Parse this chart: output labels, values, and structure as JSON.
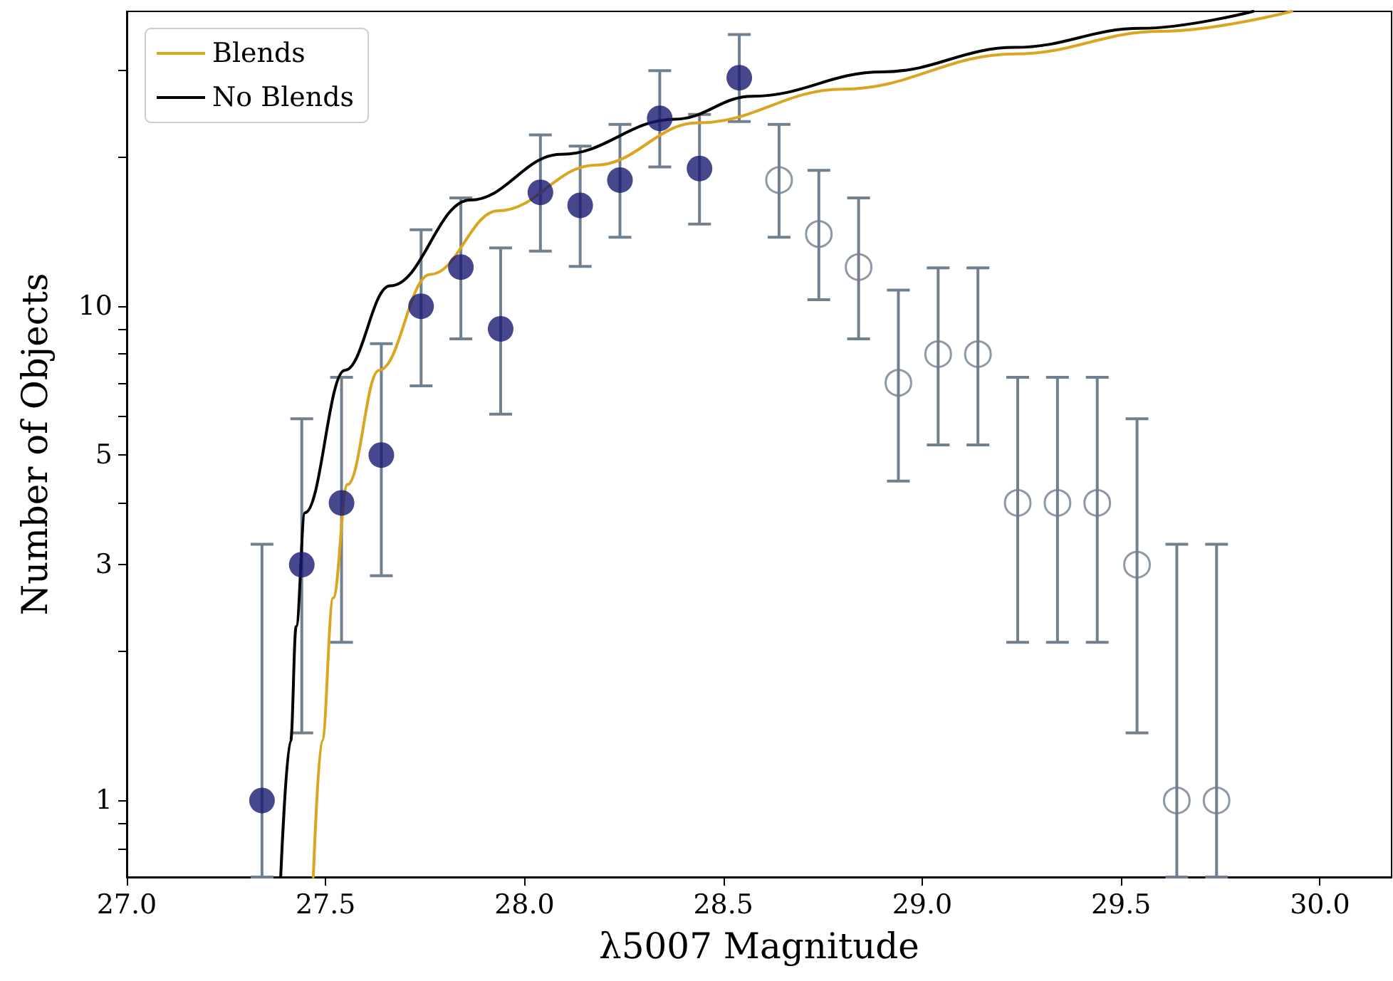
{
  "chart_data": {
    "type": "scatter",
    "xlabel": "λ5007 Magnitude",
    "ylabel": "Number of Objects",
    "xlim": [
      27.0,
      30.18
    ],
    "xticks": [
      {
        "value": 27,
        "label": "27.0"
      },
      {
        "value": 27.5,
        "label": "27.5"
      },
      {
        "value": 28,
        "label": "28.0"
      },
      {
        "value": 28.5,
        "label": "28.5"
      },
      {
        "value": 29,
        "label": "29.0"
      },
      {
        "value": 29.5,
        "label": "29.5"
      },
      {
        "value": 30,
        "label": "30.0"
      }
    ],
    "log": "y",
    "ylim": [
      0.7,
      39.5
    ],
    "yticks": [
      {
        "value": 0.8,
        "label": null
      },
      {
        "value": 0.9,
        "label": null
      },
      1,
      {
        "value": 2,
        "label": null
      },
      3,
      {
        "value": 4,
        "label": null
      },
      5,
      {
        "value": 6,
        "label": null
      },
      {
        "value": 7,
        "label": null
      },
      {
        "value": 8,
        "label": null
      },
      {
        "value": 9,
        "label": null
      },
      10,
      {
        "value": 20,
        "label": null
      },
      {
        "value": 30,
        "label": null
      }
    ],
    "grid": false,
    "legend": "top left",
    "series": [
      {
        "name": "Blends",
        "type": "line",
        "color": "#daa520",
        "marker": "none",
        "line_style": "solid",
        "x": [
          27.469,
          27.491,
          27.519,
          27.555,
          27.634,
          27.763,
          27.934,
          28.178,
          28.436,
          28.8,
          29.234,
          29.6,
          29.929
        ],
        "values": [
          0.7,
          1.32,
          2.57,
          4.36,
          7.42,
          11.6,
          15.6,
          19.3,
          23.5,
          27.5,
          32.4,
          36.0,
          39.5
        ]
      },
      {
        "name": "No Blends",
        "type": "line",
        "color": "#000000",
        "marker": "none",
        "line_style": "solid",
        "x": [
          27.387,
          27.412,
          27.426,
          27.448,
          27.548,
          27.662,
          27.863,
          28.092,
          28.378,
          28.572,
          28.9,
          29.234,
          29.55,
          29.832
        ],
        "values": [
          0.7,
          1.32,
          2.25,
          3.82,
          7.42,
          11.0,
          16.4,
          20.3,
          23.9,
          26.6,
          29.8,
          33.4,
          36.5,
          39.5
        ]
      },
      {
        "color": "#191970",
        "marker": "circle",
        "x": [
          27.34,
          27.44,
          27.54,
          27.64,
          27.74,
          27.84,
          27.94,
          28.04,
          28.14,
          28.24,
          28.34,
          28.44,
          28.54
        ],
        "values": [
          1,
          3,
          4,
          5,
          10,
          12,
          9,
          17,
          16,
          18,
          24,
          19,
          29
        ],
        "errors": [
          [
            0.7,
            3.3
          ],
          [
            1.37,
            5.92
          ],
          [
            2.09,
            7.18
          ],
          [
            2.85,
            8.4
          ],
          [
            6.9,
            14.28
          ],
          [
            8.59,
            16.57
          ],
          [
            6.05,
            13.12
          ],
          [
            12.93,
            22.21
          ],
          [
            12.04,
            21.09
          ],
          [
            13.79,
            23.33
          ],
          [
            19.13,
            29.98
          ],
          [
            14.66,
            24.44
          ],
          [
            23.64,
            35.46
          ]
        ]
      },
      {
        "color": "#708090",
        "x": [
          28.64,
          28.74,
          28.84,
          28.94,
          29.04,
          29.14,
          29.24,
          29.34,
          29.44,
          29.54,
          29.64,
          29.74
        ],
        "values": [
          18,
          14,
          12,
          7,
          8,
          8,
          4,
          4,
          4,
          3,
          1,
          1
        ],
        "errors": [
          [
            13.79,
            23.33
          ],
          [
            10.31,
            18.84
          ],
          [
            8.59,
            16.57
          ],
          [
            4.43,
            10.78
          ],
          [
            5.24,
            11.96
          ],
          [
            5.24,
            11.96
          ],
          [
            2.09,
            7.18
          ],
          [
            2.09,
            7.18
          ],
          [
            2.09,
            7.18
          ],
          [
            1.37,
            5.92
          ],
          [
            0.7,
            3.3
          ],
          [
            0.7,
            3.3
          ]
        ]
      }
    ]
  }
}
